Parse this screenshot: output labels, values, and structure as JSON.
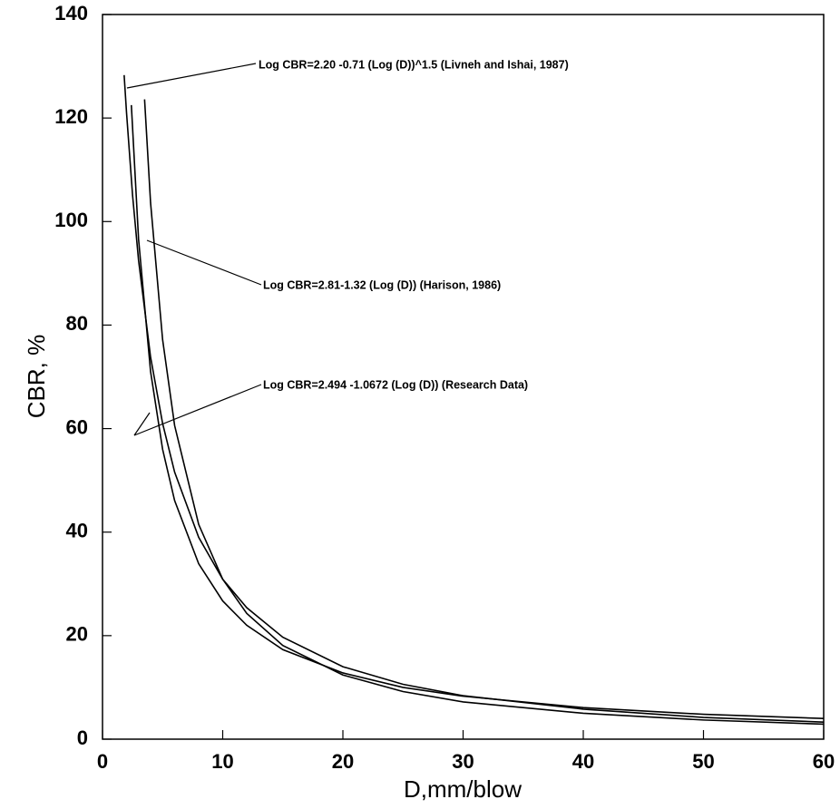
{
  "chart_data": {
    "type": "line",
    "xlabel": "D,mm/blow",
    "ylabel": "CBR, %",
    "xlim": [
      0,
      60
    ],
    "xticks": [
      0,
      10,
      20,
      30,
      40,
      50,
      60
    ],
    "ylim": [
      0,
      140
    ],
    "yticks": [
      0,
      20,
      40,
      60,
      80,
      100,
      120,
      140
    ],
    "grid": false,
    "series": [
      {
        "color": "#000000",
        "x": [
          2.4,
          3,
          4,
          5,
          6,
          8,
          10,
          12,
          15,
          20,
          25,
          30,
          40,
          50,
          60
        ],
        "values": [
          122.5,
          96.6,
          71.0,
          56.0,
          46.1,
          33.9,
          26.7,
          22.0,
          17.3,
          12.8,
          10.0,
          8.3,
          6.1,
          4.8,
          4.0
        ]
      },
      {
        "color": "#000000",
        "x": [
          3.5,
          4,
          5,
          6,
          8,
          10,
          12,
          15,
          20,
          25,
          30,
          40,
          50,
          60
        ],
        "values": [
          123.6,
          103.6,
          77.2,
          60.6,
          41.5,
          30.9,
          24.3,
          18.1,
          12.4,
          9.2,
          7.2,
          5.0,
          3.7,
          2.9
        ]
      },
      {
        "color": "#000000",
        "x": [
          1.8,
          2,
          2.5,
          3,
          4,
          5,
          6,
          8,
          10,
          12,
          15,
          20,
          25,
          30,
          40,
          50,
          60
        ],
        "values": [
          128.3,
          121.0,
          105.1,
          92.5,
          73.8,
          61.0,
          51.6,
          39.0,
          30.9,
          25.4,
          19.7,
          14.0,
          10.6,
          8.4,
          5.8,
          4.2,
          3.3
        ]
      }
    ],
    "annotations": [
      "Log CBR=2.20 -0.71 (Log (D))^1.5  (Livneh and Ishai, 1987)",
      "Log CBR=2.81-1.32 (Log (D)) (Harison, 1986)",
      "Log CBR=2.494 -1.0672 (Log (D)) (Research Data)"
    ]
  }
}
